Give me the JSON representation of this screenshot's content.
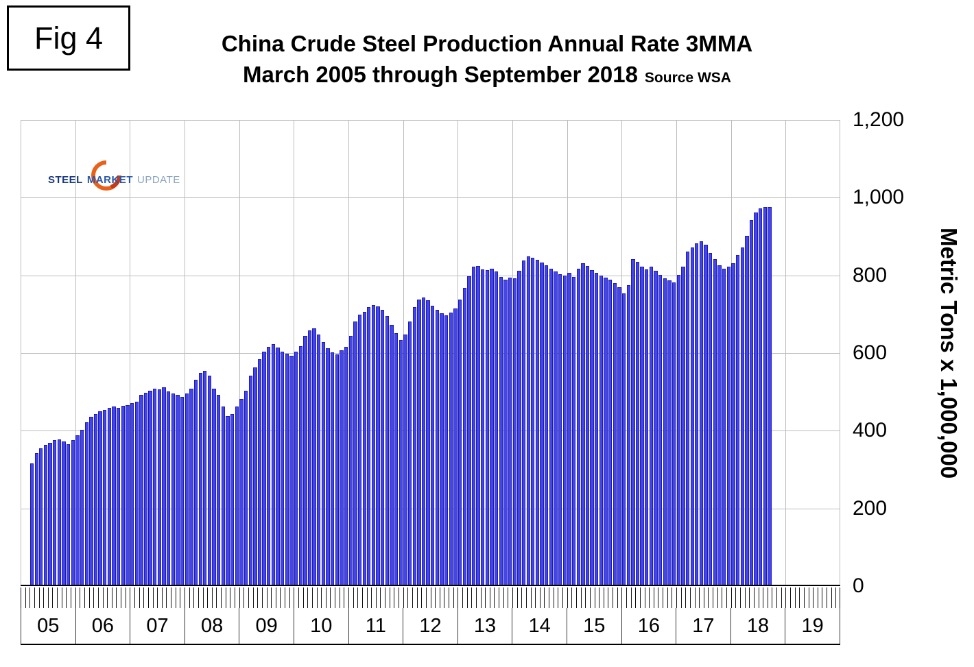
{
  "header": {
    "fig_label": "Fig 4"
  },
  "logo": {
    "word1": "STEEL",
    "word2": "MARKET",
    "word3": "UPDATE"
  },
  "chart_data": {
    "type": "bar",
    "title": "China Crude Steel Production Annual Rate 3MMA",
    "subtitle": "March 2005 through September 2018",
    "source": "Source WSA",
    "ylabel": "Metric Tons x 1,000,000",
    "ylim": [
      0,
      1200
    ],
    "ytick_step": 200,
    "ytick_labels": [
      "0",
      "200",
      "400",
      "600",
      "800",
      "1,000",
      "1,200"
    ],
    "x_years": [
      "05",
      "06",
      "07",
      "08",
      "09",
      "10",
      "11",
      "12",
      "13",
      "14",
      "15",
      "16",
      "17",
      "18",
      "19"
    ],
    "months_per_year": 12,
    "start_month": "2005-03",
    "end_month": "2018-09",
    "start_month_offset": 2,
    "grid": true,
    "legend": "none",
    "bar_color": "#4545ee",
    "bar_border": "#1c1cb0",
    "values": [
      313,
      338,
      352,
      360,
      366,
      372,
      375,
      368,
      362,
      372,
      385,
      398,
      418,
      432,
      440,
      446,
      450,
      455,
      458,
      455,
      460,
      463,
      468,
      472,
      488,
      495,
      500,
      505,
      503,
      508,
      498,
      492,
      488,
      483,
      492,
      505,
      528,
      545,
      550,
      538,
      505,
      488,
      458,
      435,
      440,
      458,
      478,
      500,
      538,
      560,
      580,
      600,
      612,
      620,
      610,
      600,
      595,
      590,
      600,
      615,
      640,
      655,
      660,
      645,
      625,
      608,
      598,
      593,
      603,
      613,
      640,
      678,
      695,
      702,
      715,
      720,
      716,
      708,
      692,
      668,
      648,
      630,
      645,
      678,
      715,
      735,
      740,
      733,
      718,
      707,
      698,
      693,
      700,
      712,
      735,
      765,
      795,
      818,
      820,
      812,
      810,
      813,
      806,
      793,
      785,
      790,
      788,
      808,
      835,
      845,
      842,
      836,
      830,
      822,
      813,
      806,
      800,
      796,
      803,
      793,
      813,
      828,
      820,
      810,
      803,
      796,
      790,
      786,
      776,
      766,
      750,
      772,
      838,
      832,
      818,
      812,
      818,
      808,
      798,
      788,
      783,
      778,
      798,
      818,
      858,
      868,
      878,
      885,
      875,
      855,
      838,
      823,
      813,
      818,
      828,
      848,
      868,
      898,
      938,
      958,
      968,
      973,
      973
    ]
  }
}
